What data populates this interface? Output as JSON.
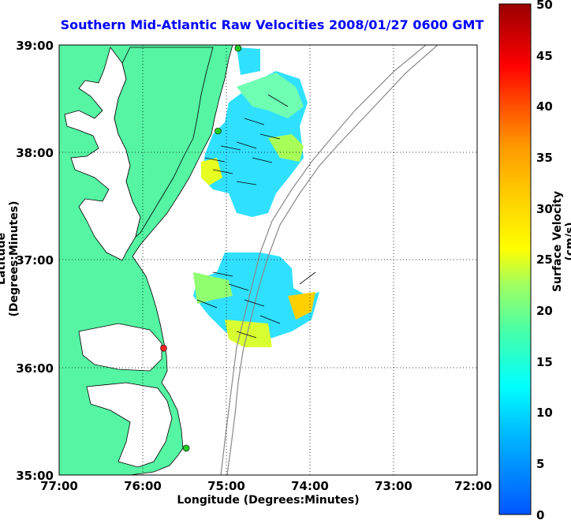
{
  "title": "Southern Mid-Atlantic Raw Velocities 2008/01/27 0600 GMT",
  "x_axis": {
    "label": "Longitude (Degrees:Minutes)",
    "ticks": [
      "77:00",
      "76:00",
      "75:00",
      "74:00",
      "73:00",
      "72:00"
    ]
  },
  "y_axis": {
    "label": "Latitude (Degrees:Minutes)",
    "ticks": [
      "39:00",
      "38:00",
      "37:00",
      "36:00",
      "35:00"
    ]
  },
  "colorbar": {
    "label": "Surface Velocity (cm/s)",
    "ticks": [
      "50",
      "45",
      "40",
      "35",
      "30",
      "25",
      "20",
      "15",
      "10",
      "5",
      "0"
    ],
    "min": 0,
    "max": 50
  },
  "map": {
    "extent": {
      "lon_min": -77,
      "lon_max": -72,
      "lat_min": 35,
      "lat_max": 39
    },
    "land_color": "#55f5a3",
    "grid": "dotted",
    "stations": [
      {
        "lon": -74.86,
        "lat": 38.97,
        "color": "#22cc22"
      },
      {
        "lon": -75.1,
        "lat": 38.2,
        "color": "#22cc22"
      },
      {
        "lon": -75.75,
        "lat": 36.18,
        "color": "#ff2222"
      },
      {
        "lon": -75.48,
        "lat": 35.25,
        "color": "#22cc22"
      }
    ]
  }
}
